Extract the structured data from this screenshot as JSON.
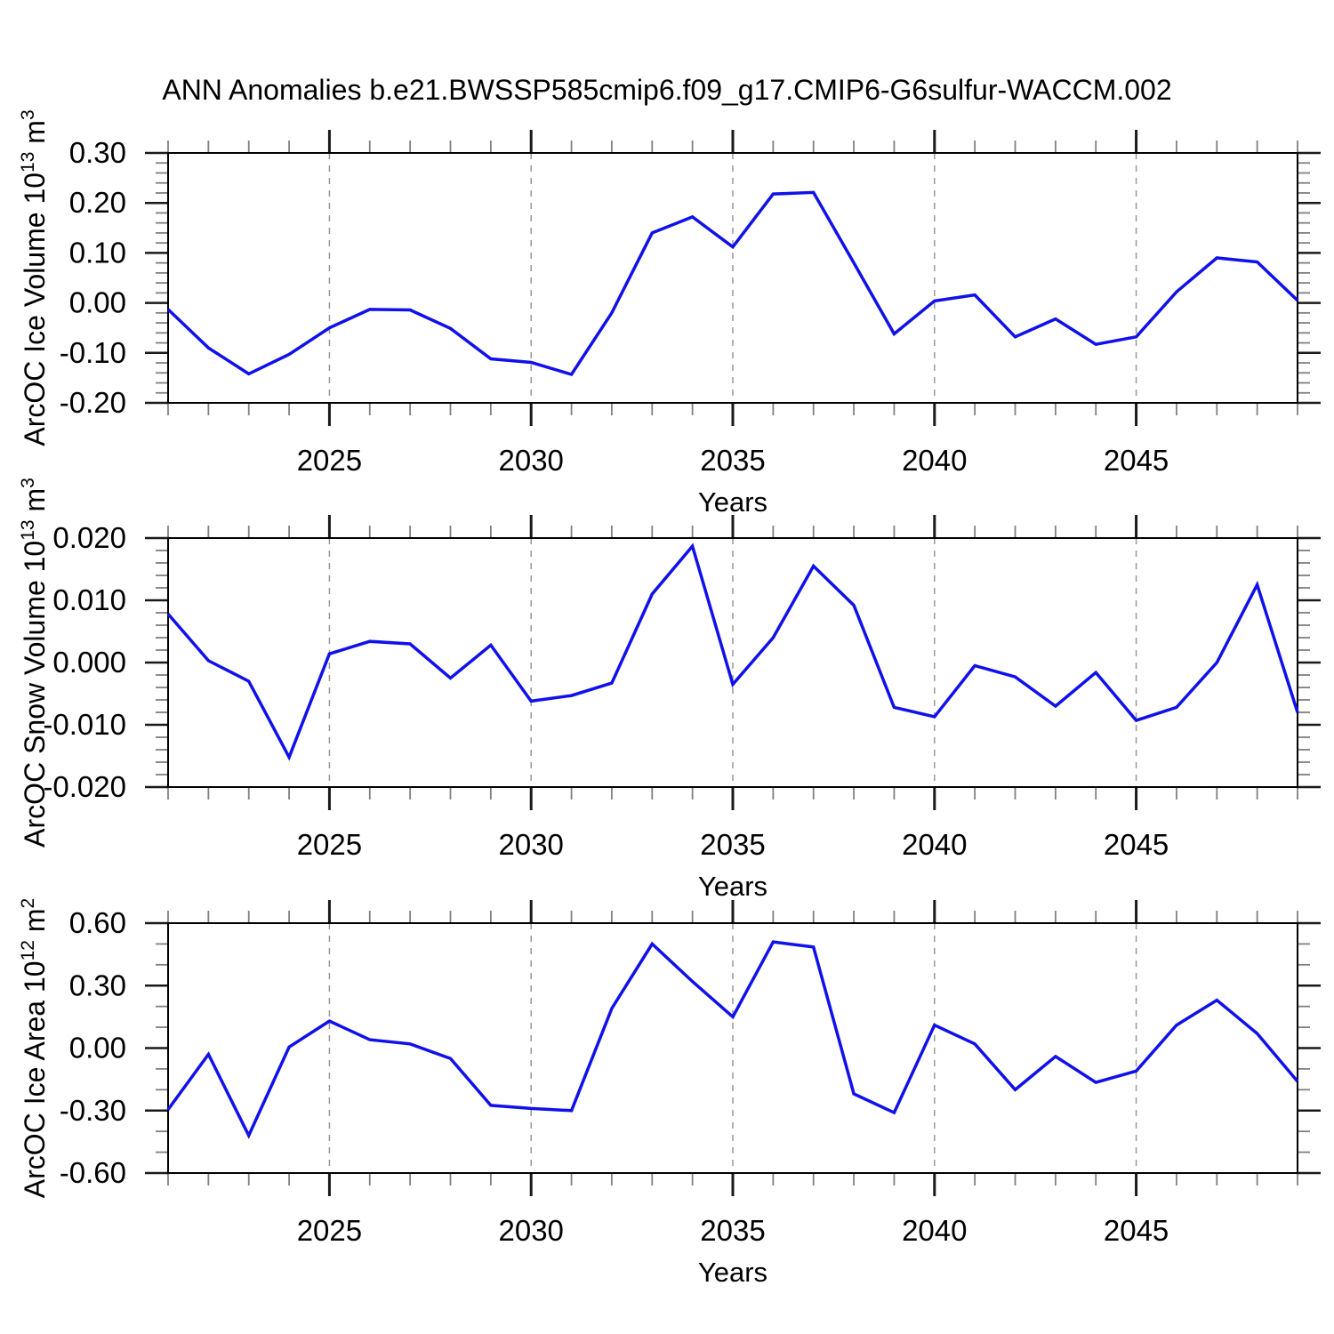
{
  "title": "ANN Anomalies b.e21.BWSSP585cmip6.f09_g17.CMIP6-G6sulfur-WACCM.002",
  "x_axis": {
    "label": "Years",
    "range": [
      2021,
      2049
    ],
    "major_ticks": [
      2025,
      2030,
      2035,
      2040,
      2045
    ],
    "major_tick_labels": [
      "2025",
      "2030",
      "2035",
      "2040",
      "2045"
    ],
    "minor_step": 1
  },
  "colors": {
    "line": "#1010eb",
    "grid": "#999999",
    "frame": "#000000",
    "major_tick": "#1a1a1a",
    "minor_tick": "#808080",
    "text": "#000000",
    "background": "#ffffff"
  },
  "chart_data": [
    {
      "type": "line",
      "id": "arcoc-ice-volume",
      "ylabel_text": "ArcOC Ice Volume 10^13 m^3",
      "ylabel_parts": [
        {
          "text": "ArcOC Ice Volume 10"
        },
        {
          "text": "13",
          "sup": true
        },
        {
          "text": " m"
        },
        {
          "text": "3",
          "sup": true
        }
      ],
      "ylim": [
        -0.2,
        0.3
      ],
      "y_major": [
        0.3,
        0.2,
        0.1,
        0.0,
        -0.1,
        -0.2
      ],
      "y_major_labels": [
        "0.30",
        "0.20",
        "0.10",
        "0.00",
        "-0.10",
        "-0.20"
      ],
      "y_minor_step": 0.02,
      "x": [
        2021,
        2022,
        2023,
        2024,
        2025,
        2026,
        2027,
        2028,
        2029,
        2030,
        2031,
        2032,
        2033,
        2034,
        2035,
        2036,
        2037,
        2038,
        2039,
        2040,
        2041,
        2042,
        2043,
        2044,
        2045,
        2046,
        2047,
        2048,
        2049
      ],
      "values": [
        -0.013,
        -0.09,
        -0.142,
        -0.103,
        -0.05,
        -0.013,
        -0.014,
        -0.051,
        -0.112,
        -0.119,
        -0.143,
        -0.02,
        0.14,
        0.172,
        0.112,
        0.218,
        0.221,
        0.08,
        -0.062,
        0.004,
        0.016,
        -0.068,
        -0.032,
        -0.083,
        -0.068,
        0.022,
        0.09,
        0.082,
        0.005
      ]
    },
    {
      "type": "line",
      "id": "arcoc-snow-volume",
      "ylabel_text": "ArcOC Snow Volume 10^13 m^3",
      "ylabel_parts": [
        {
          "text": "ArcOC Snow Volume 10"
        },
        {
          "text": "13",
          "sup": true
        },
        {
          "text": " m"
        },
        {
          "text": "3",
          "sup": true
        }
      ],
      "ylim": [
        -0.02,
        0.02
      ],
      "y_major": [
        0.02,
        0.01,
        0.0,
        -0.01,
        -0.02
      ],
      "y_major_labels": [
        "0.020",
        "0.010",
        "0.000",
        "-0.010",
        "-0.020"
      ],
      "y_minor_step": 0.002,
      "x": [
        2021,
        2022,
        2023,
        2024,
        2025,
        2026,
        2027,
        2028,
        2029,
        2030,
        2031,
        2032,
        2033,
        2034,
        2035,
        2036,
        2037,
        2038,
        2039,
        2040,
        2041,
        2042,
        2043,
        2044,
        2045,
        2046,
        2047,
        2048,
        2049
      ],
      "values": [
        0.0078,
        0.0003,
        -0.003,
        -0.0152,
        0.0014,
        0.0034,
        0.003,
        -0.0025,
        0.0028,
        -0.0062,
        -0.0053,
        -0.0033,
        0.011,
        0.0187,
        -0.0035,
        0.004,
        0.0155,
        0.0092,
        -0.0072,
        -0.0087,
        -0.0005,
        -0.0023,
        -0.007,
        -0.0016,
        -0.0093,
        -0.0072,
        0.0,
        0.0125,
        -0.008
      ]
    },
    {
      "type": "line",
      "id": "arcoc-ice-area",
      "ylabel_text": "ArcOC Ice Area 10^12 m^2",
      "ylabel_parts": [
        {
          "text": "ArcOC Ice Area 10"
        },
        {
          "text": "12",
          "sup": true
        },
        {
          "text": " m"
        },
        {
          "text": "2",
          "sup": true
        }
      ],
      "ylim": [
        -0.6,
        0.6
      ],
      "y_major": [
        0.6,
        0.3,
        0.0,
        -0.3,
        -0.6
      ],
      "y_major_labels": [
        "0.60",
        "0.30",
        "0.00",
        "-0.30",
        "-0.60"
      ],
      "y_minor_step": 0.1,
      "x": [
        2021,
        2022,
        2023,
        2024,
        2025,
        2026,
        2027,
        2028,
        2029,
        2030,
        2031,
        2032,
        2033,
        2034,
        2035,
        2036,
        2037,
        2038,
        2039,
        2040,
        2041,
        2042,
        2043,
        2044,
        2045,
        2046,
        2047,
        2048,
        2049
      ],
      "values": [
        -0.295,
        -0.03,
        -0.42,
        0.005,
        0.13,
        0.04,
        0.02,
        -0.05,
        -0.275,
        -0.29,
        -0.3,
        0.19,
        0.5,
        0.32,
        0.15,
        0.51,
        0.485,
        -0.22,
        -0.31,
        0.11,
        0.02,
        -0.2,
        -0.04,
        -0.165,
        -0.11,
        0.11,
        0.23,
        0.07,
        -0.16
      ]
    }
  ]
}
